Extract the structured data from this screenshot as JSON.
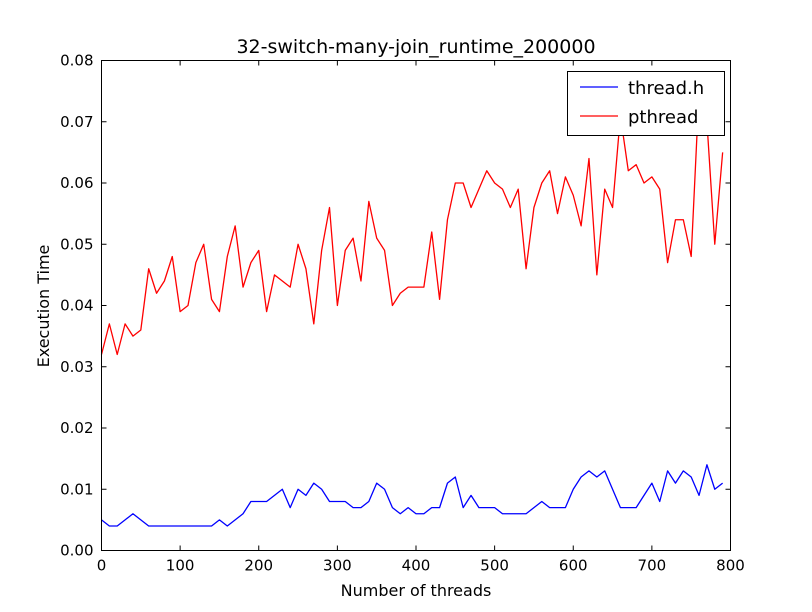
{
  "chart_data": {
    "type": "line",
    "title": "32-switch-many-join_runtime_200000",
    "xlabel": "Number of threads",
    "ylabel": "Execution Time",
    "xlim": [
      0,
      800
    ],
    "ylim": [
      0,
      0.08
    ],
    "xticks": [
      "0",
      "100",
      "200",
      "300",
      "400",
      "500",
      "600",
      "700",
      "800"
    ],
    "yticks": [
      "0.00",
      "0.01",
      "0.02",
      "0.03",
      "0.04",
      "0.05",
      "0.06",
      "0.07",
      "0.08"
    ],
    "grid": false,
    "legend_position": "top-right",
    "x": [
      0,
      10,
      20,
      30,
      40,
      50,
      60,
      70,
      80,
      90,
      100,
      110,
      120,
      130,
      140,
      150,
      160,
      170,
      180,
      190,
      200,
      210,
      220,
      230,
      240,
      250,
      260,
      270,
      280,
      290,
      300,
      310,
      320,
      330,
      340,
      350,
      360,
      370,
      380,
      390,
      400,
      410,
      420,
      430,
      440,
      450,
      460,
      470,
      480,
      490,
      500,
      510,
      520,
      530,
      540,
      550,
      560,
      570,
      580,
      590,
      600,
      610,
      620,
      630,
      640,
      650,
      660,
      670,
      680,
      690,
      700,
      710,
      720,
      730,
      740,
      750,
      760,
      770,
      780,
      790
    ],
    "series": [
      {
        "name": "thread.h",
        "color": "#0000ff",
        "values": [
          0.005,
          0.004,
          0.004,
          0.005,
          0.006,
          0.005,
          0.004,
          0.004,
          0.004,
          0.004,
          0.004,
          0.004,
          0.004,
          0.004,
          0.004,
          0.005,
          0.004,
          0.005,
          0.006,
          0.008,
          0.008,
          0.008,
          0.009,
          0.01,
          0.007,
          0.01,
          0.009,
          0.011,
          0.01,
          0.008,
          0.008,
          0.008,
          0.007,
          0.007,
          0.008,
          0.011,
          0.01,
          0.007,
          0.006,
          0.007,
          0.006,
          0.006,
          0.007,
          0.007,
          0.011,
          0.012,
          0.007,
          0.009,
          0.007,
          0.007,
          0.007,
          0.006,
          0.006,
          0.006,
          0.006,
          0.007,
          0.008,
          0.007,
          0.007,
          0.007,
          0.01,
          0.012,
          0.013,
          0.012,
          0.013,
          0.01,
          0.007,
          0.007,
          0.007,
          0.009,
          0.011,
          0.008,
          0.013,
          0.011,
          0.013,
          0.012,
          0.009,
          0.014,
          0.01,
          0.011
        ]
      },
      {
        "name": "pthread",
        "color": "#ff0000",
        "values": [
          0.032,
          0.037,
          0.032,
          0.037,
          0.035,
          0.036,
          0.046,
          0.042,
          0.044,
          0.048,
          0.039,
          0.04,
          0.047,
          0.05,
          0.041,
          0.039,
          0.048,
          0.053,
          0.043,
          0.047,
          0.049,
          0.039,
          0.045,
          0.044,
          0.043,
          0.05,
          0.046,
          0.037,
          0.049,
          0.056,
          0.04,
          0.049,
          0.051,
          0.044,
          0.057,
          0.051,
          0.049,
          0.04,
          0.042,
          0.043,
          0.043,
          0.043,
          0.052,
          0.041,
          0.054,
          0.06,
          0.06,
          0.056,
          0.059,
          0.062,
          0.06,
          0.059,
          0.056,
          0.059,
          0.046,
          0.056,
          0.06,
          0.062,
          0.055,
          0.061,
          0.058,
          0.053,
          0.064,
          0.045,
          0.059,
          0.056,
          0.071,
          0.062,
          0.063,
          0.06,
          0.061,
          0.059,
          0.047,
          0.054,
          0.054,
          0.048,
          0.075,
          0.07,
          0.05,
          0.065
        ]
      }
    ]
  }
}
